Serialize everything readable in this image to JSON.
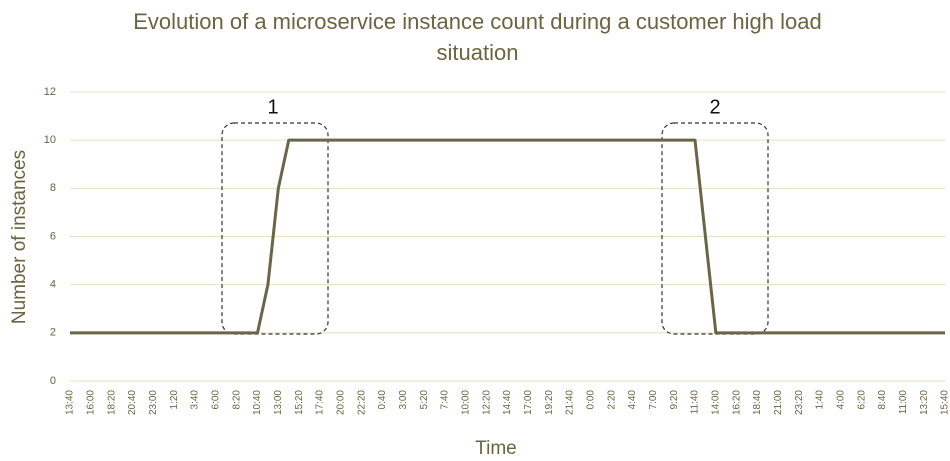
{
  "chart_data": {
    "type": "line",
    "title": "Evolution of a microservice instance count during a customer high load situation",
    "xlabel": "Time",
    "ylabel": "Number of instances",
    "annotations": [
      "1",
      "2"
    ],
    "categories": [
      "13:40",
      null,
      "16:00",
      null,
      "18:20",
      null,
      "20:40",
      null,
      "23:00",
      null,
      "1:20",
      null,
      "3:40",
      null,
      "6:00",
      null,
      "8:20",
      null,
      "10:40",
      null,
      "13:00",
      null,
      "15:20",
      null,
      "17:40",
      null,
      "20:00",
      null,
      "22:20",
      null,
      "0:40",
      null,
      "3:00",
      null,
      "5:20",
      null,
      "7:40",
      null,
      "10:00",
      null,
      "12:20",
      null,
      "14:40",
      null,
      "17:00",
      null,
      "19:20",
      null,
      "21:40",
      null,
      "0:00",
      null,
      "2:20",
      null,
      "4:40",
      null,
      "7:00",
      null,
      "9:20",
      null,
      "11:40",
      null,
      "14:00",
      null,
      "16:20",
      null,
      "18:40",
      null,
      "21:00",
      null,
      "23:20",
      null,
      "1:40",
      null,
      "4:00",
      null,
      "6:20",
      null,
      "8:40",
      null,
      "11:00",
      null,
      "13:20",
      null,
      "15:40"
    ],
    "series": [
      {
        "name": "Number of instances",
        "color": "#6b6548",
        "values": [
          2,
          2,
          2,
          2,
          2,
          2,
          2,
          2,
          2,
          2,
          2,
          2,
          2,
          2,
          2,
          2,
          2,
          2,
          2,
          4,
          8,
          10,
          10,
          10,
          10,
          10,
          10,
          10,
          10,
          10,
          10,
          10,
          10,
          10,
          10,
          10,
          10,
          10,
          10,
          10,
          10,
          10,
          10,
          10,
          10,
          10,
          10,
          10,
          10,
          10,
          10,
          10,
          10,
          10,
          10,
          10,
          10,
          10,
          10,
          10,
          10,
          6,
          2,
          2,
          2,
          2,
          2,
          2,
          2,
          2,
          2,
          2,
          2,
          2,
          2,
          2,
          2,
          2,
          2,
          2,
          2,
          2,
          2,
          2,
          2
        ]
      }
    ],
    "ylim": [
      0,
      12
    ],
    "yticks": [
      0,
      2,
      4,
      6,
      8,
      10,
      12
    ],
    "grid": true
  }
}
